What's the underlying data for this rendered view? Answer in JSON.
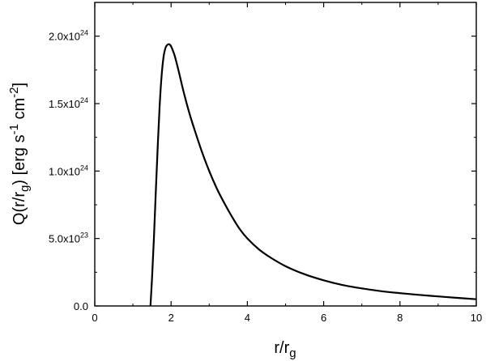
{
  "chart_data": {
    "type": "line",
    "title": "",
    "xlabel": {
      "base": "r/r",
      "sub": "g"
    },
    "ylabel": {
      "q": "Q(r/r",
      "sub1": "g",
      "bracket": ") [erg s",
      "sup1": "-1",
      "mid": " cm",
      "sup2": "-2",
      "end": "]"
    },
    "xlim": [
      0,
      10
    ],
    "ylim": [
      0,
      2.25e+24
    ],
    "grid": false,
    "x_ticks": [
      0,
      2,
      4,
      6,
      8,
      10
    ],
    "x_tick_labels": [
      "0",
      "2",
      "4",
      "6",
      "8",
      "10"
    ],
    "y_ticks": [
      0,
      5e+23,
      1e+24,
      1.5e+24,
      2e+24
    ],
    "y_tick_labels": [
      {
        "mant": "0.0",
        "exp": ""
      },
      {
        "mant": "5.0x10",
        "exp": "23"
      },
      {
        "mant": "1.0x10",
        "exp": "24"
      },
      {
        "mant": "1.5x10",
        "exp": "24"
      },
      {
        "mant": "2.0x10",
        "exp": "24"
      }
    ],
    "series": [
      {
        "color": "#000000",
        "x": [
          1.46,
          1.5,
          1.55,
          1.6,
          1.65,
          1.7,
          1.75,
          1.8,
          1.85,
          1.9,
          1.95,
          2.0,
          2.05,
          2.1,
          2.2,
          2.3,
          2.4,
          2.5,
          2.6,
          2.8,
          3.0,
          3.2,
          3.4,
          3.6,
          3.8,
          4.0,
          4.3,
          4.6,
          5.0,
          5.5,
          6.0,
          6.5,
          7.0,
          7.5,
          8.0,
          8.5,
          9.0,
          9.5,
          10.0
        ],
        "y": [
          0,
          2e+23,
          5e+23,
          8.5e+23,
          1.18e+24,
          1.48e+24,
          1.7e+24,
          1.84e+24,
          1.91e+24,
          1.935e+24,
          1.94e+24,
          1.925e+24,
          1.89e+24,
          1.85e+24,
          1.74e+24,
          1.62e+24,
          1.51e+24,
          1.41e+24,
          1.32e+24,
          1.15e+24,
          1e+24,
          8.7e+23,
          7.6e+23,
          6.6e+23,
          5.7e+23,
          5e+23,
          4.2e+23,
          3.6e+23,
          2.95e+23,
          2.35e+23,
          1.9e+23,
          1.55e+23,
          1.3e+23,
          1.1e+23,
          9.5e+22,
          8.2e+22,
          7.1e+22,
          6e+22,
          5e+22
        ]
      }
    ]
  }
}
